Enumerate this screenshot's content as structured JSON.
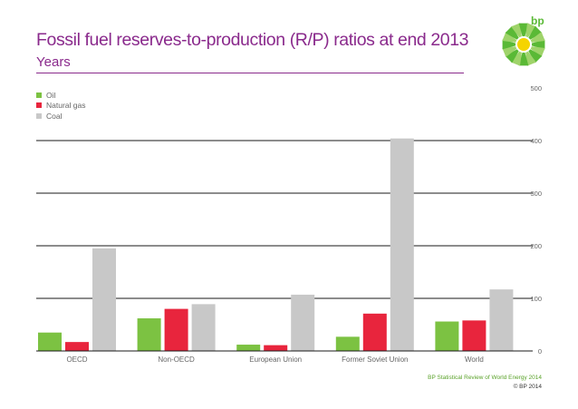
{
  "header": {
    "title": "Fossil fuel reserves-to-production (R/P) ratios at end 2013",
    "subtitle": "Years"
  },
  "brand": {
    "logo_text": "bp",
    "green": "#5ab936",
    "yellow": "#f5d400",
    "purple": "#8a2a8c"
  },
  "legend": [
    {
      "name": "Oil",
      "color": "#7cc242"
    },
    {
      "name": "Natural gas",
      "color": "#e8253d"
    },
    {
      "name": "Coal",
      "color": "#c8c8c8"
    }
  ],
  "chart_data": {
    "type": "bar",
    "title": "Fossil fuel reserves-to-production (R/P) ratios at end 2013",
    "ylabel": "Years",
    "xlabel": "",
    "categories": [
      "OECD",
      "Non-OECD",
      "European Union",
      "Former Soviet Union",
      "World"
    ],
    "series": [
      {
        "name": "Oil",
        "color": "#7cc242",
        "values": [
          35,
          62,
          12,
          27,
          56
        ]
      },
      {
        "name": "Natural gas",
        "color": "#e8253d",
        "values": [
          17,
          80,
          11,
          71,
          58
        ]
      },
      {
        "name": "Coal",
        "color": "#c8c8c8",
        "values": [
          195,
          89,
          107,
          404,
          117
        ]
      }
    ],
    "ylim": [
      0,
      500
    ],
    "yticks": [
      "0",
      "100",
      "200",
      "300",
      "400",
      "500"
    ],
    "ytick_values": [
      0,
      100,
      200,
      300,
      400,
      500
    ],
    "y_axis_side": "right",
    "grid": true,
    "legend_position": "top-left"
  },
  "footer": {
    "source": "BP Statistical Review of World Energy 2014",
    "copyright": "© BP 2014"
  }
}
